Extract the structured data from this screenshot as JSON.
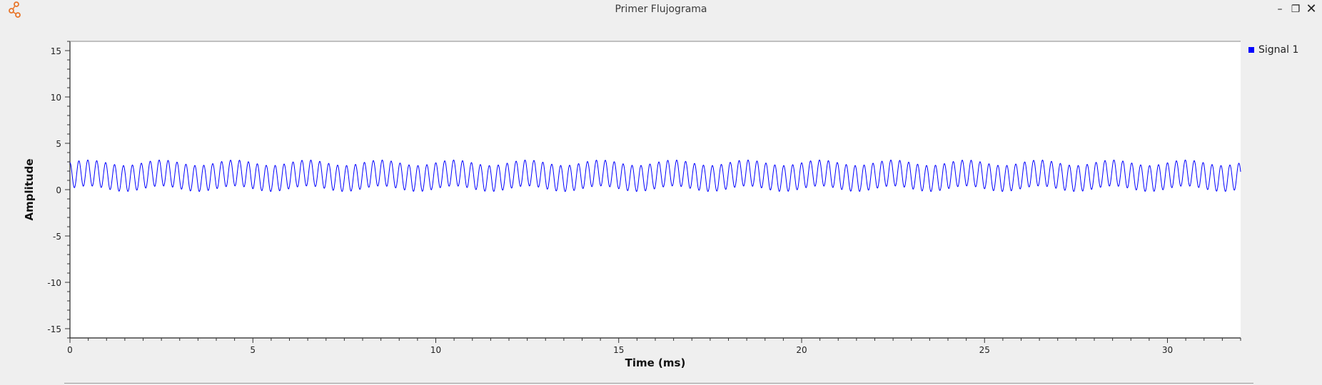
{
  "window": {
    "title": "Primer Flujograma",
    "minimize_glyph": "–",
    "restore_glyph": "❐",
    "close_glyph": "✕"
  },
  "colors": {
    "signal": "#0000ff",
    "plot_bg": "#ffffff",
    "window_bg": "#efefef",
    "icon": "#e8762b"
  },
  "chart_data": {
    "type": "line",
    "xlabel": "Time (ms)",
    "ylabel": "Amplitude",
    "xlim": [
      0,
      32
    ],
    "ylim": [
      -16,
      16
    ],
    "xticks": [
      0,
      5,
      10,
      15,
      20,
      25,
      30
    ],
    "xtick_labels": [
      "0",
      "5",
      "10",
      "15",
      "20",
      "25",
      "30"
    ],
    "yticks": [
      15,
      10,
      5,
      0,
      -5,
      -10,
      -15
    ],
    "ytick_labels": [
      "15",
      "10",
      "5",
      "0",
      "-5",
      "-10",
      "-15"
    ],
    "grid": false,
    "legend": "top-right",
    "series": [
      {
        "name": "Signal 1",
        "color": "#0000ff",
        "mean": 1.5,
        "amplitude": 1.4,
        "frequency_khz": 4.1,
        "ripple": 0.3,
        "ripple_frequency_khz": 0.5
      }
    ]
  }
}
